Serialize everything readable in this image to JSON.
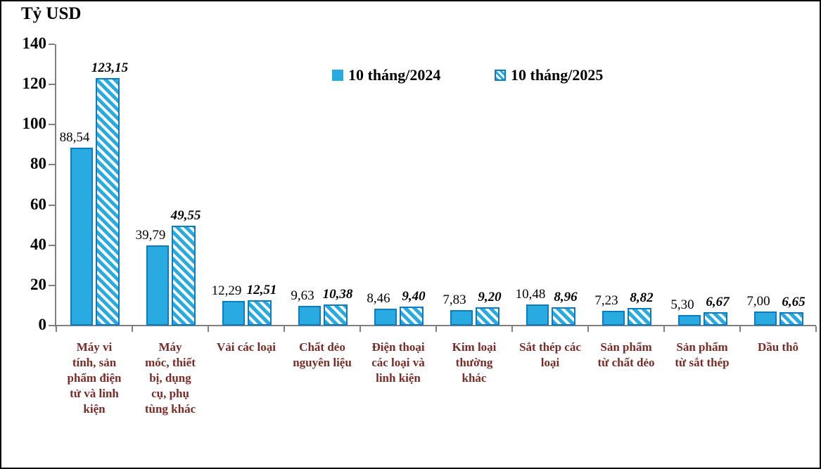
{
  "title": "Tỷ USD",
  "colors": {
    "bar_fill": "#29abe2",
    "bar_border": "#0b7cc1",
    "hatch_bg": "#ffffff",
    "axis": "#808080",
    "category_label": "#7a2b26",
    "value_label": "#000000"
  },
  "legend": {
    "items": [
      {
        "label": "10 tháng/2024",
        "swatch": "solid"
      },
      {
        "label": "10 tháng/2025",
        "swatch": "hatched"
      }
    ]
  },
  "chart_data": {
    "type": "bar",
    "title": "Tỷ USD",
    "ylabel": "Tỷ USD",
    "xlabel": "",
    "ylim": [
      0,
      140
    ],
    "yticks": [
      0,
      20,
      40,
      60,
      80,
      100,
      120,
      140
    ],
    "grid": false,
    "legend_position": "top-center",
    "categories": [
      "Máy vi tính, sản phẩm điện tử và linh kiện",
      "Máy móc, thiết bị, dụng cụ, phụ tùng khác",
      "Vải các loại",
      "Chất dẻo nguyên liệu",
      "Điện thoại các loại và linh kiện",
      "Kim loại thường khác",
      "Sắt thép các loại",
      "Sản phẩm từ chất dẻo",
      "Sản phẩm từ sắt thép",
      "Dầu thô"
    ],
    "categories_display": [
      "Máy vi\ntính, sản\nphẩm điện\ntử và linh\nkiện",
      "Máy\nmóc, thiết\nbị, dụng\ncụ, phụ\ntùng khác",
      "Vải các loại",
      "Chất dẻo\nnguyên liệu",
      "Điện thoại\ncác loại và\nlinh kiện",
      "Kim loại\nthường\nkhác",
      "Sắt thép các\nloại",
      "Sản phẩm\ntừ chất dẻo",
      "Sản phẩm\ntừ sắt thép",
      "Dầu thô"
    ],
    "series": [
      {
        "name": "10 tháng/2024",
        "style": "solid",
        "values": [
          88.54,
          39.79,
          12.29,
          9.63,
          8.46,
          7.83,
          10.48,
          7.23,
          5.3,
          7.0
        ],
        "labels": [
          "88,54",
          "39,79",
          "12,29",
          "9,63",
          "8,46",
          "7,83",
          "10,48",
          "7,23",
          "5,30",
          "7,00"
        ]
      },
      {
        "name": "10 tháng/2025",
        "style": "hatched",
        "values": [
          123.15,
          49.55,
          12.51,
          10.38,
          9.4,
          9.2,
          8.96,
          8.82,
          6.67,
          6.65
        ],
        "labels": [
          "123,15",
          "49,55",
          "12,51",
          "10,38",
          "9,40",
          "9,20",
          "8,96",
          "8,82",
          "6,67",
          "6,65"
        ]
      }
    ]
  }
}
